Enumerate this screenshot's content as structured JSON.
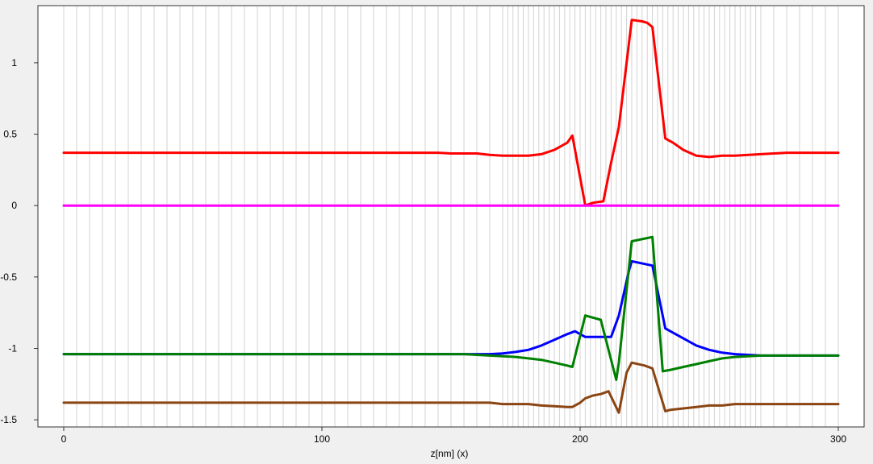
{
  "chart_data": {
    "type": "line",
    "xlabel": "z[nm] (x)",
    "ylabel": "",
    "xlim": [
      -10,
      310
    ],
    "ylim": [
      -1.55,
      1.4
    ],
    "x_ticks": [
      0,
      100,
      200,
      300
    ],
    "y_ticks": [
      -1.5,
      -1,
      -0.5,
      0,
      0.5,
      1
    ],
    "x_tick_labels": [
      "0",
      "100",
      "200",
      "300"
    ],
    "y_tick_labels": [
      "-1.5",
      "-1",
      "-0.5",
      "0",
      "0.5",
      "1"
    ],
    "grid": "vertical",
    "grid_x": [
      0,
      5,
      10,
      15,
      20,
      25,
      30,
      35,
      40,
      45,
      50,
      55,
      60,
      65,
      70,
      75,
      80,
      85,
      90,
      95,
      100,
      105,
      110,
      115,
      120,
      125,
      130,
      135,
      140,
      145,
      150,
      155,
      160,
      165,
      170,
      172,
      174,
      176,
      178,
      180,
      182,
      184,
      186,
      188,
      190,
      192,
      194,
      196,
      198,
      200,
      202,
      204,
      206,
      208,
      210,
      212,
      214,
      216,
      218,
      220,
      222,
      224,
      226,
      228,
      230,
      232,
      234,
      236,
      238,
      240,
      242,
      244,
      246,
      248,
      250,
      252,
      254,
      256,
      258,
      260,
      262,
      264,
      266,
      268,
      270,
      275,
      280,
      285,
      290,
      295,
      300
    ],
    "series": [
      {
        "color": "#ff0000",
        "x": [
          0,
          145,
          150,
          160,
          165,
          170,
          175,
          180,
          185,
          190,
          195,
          197,
          202,
          205,
          209,
          212,
          215,
          219,
          220,
          224,
          226,
          228,
          233,
          236,
          240,
          245,
          250,
          255,
          260,
          270,
          280,
          290,
          300
        ],
        "y": [
          0.37,
          0.37,
          0.365,
          0.365,
          0.355,
          0.35,
          0.35,
          0.35,
          0.36,
          0.39,
          0.44,
          0.49,
          0.0,
          0.02,
          0.03,
          0.3,
          0.55,
          1.15,
          1.3,
          1.29,
          1.28,
          1.25,
          0.47,
          0.44,
          0.39,
          0.35,
          0.34,
          0.35,
          0.35,
          0.36,
          0.37,
          0.37,
          0.37
        ]
      },
      {
        "color": "#ff00ff",
        "x": [
          0,
          300
        ],
        "y": [
          0.0,
          0.0
        ]
      },
      {
        "color": "#0000ff",
        "x": [
          0,
          155,
          165,
          170,
          175,
          180,
          185,
          190,
          195,
          198,
          202,
          207,
          212,
          215,
          219,
          220,
          228,
          233,
          237,
          240,
          245,
          250,
          255,
          260,
          265,
          270,
          280,
          300
        ],
        "y": [
          -1.04,
          -1.04,
          -1.04,
          -1.035,
          -1.025,
          -1.01,
          -0.98,
          -0.94,
          -0.9,
          -0.88,
          -0.92,
          -0.92,
          -0.92,
          -0.77,
          -0.45,
          -0.39,
          -0.42,
          -0.86,
          -0.9,
          -0.93,
          -0.98,
          -1.01,
          -1.03,
          -1.04,
          -1.045,
          -1.05,
          -1.05,
          -1.05
        ]
      },
      {
        "color": "#008000",
        "x": [
          0,
          155,
          160,
          165,
          170,
          175,
          180,
          185,
          190,
          195,
          197,
          202,
          208,
          211,
          214,
          215,
          219,
          220,
          228,
          232,
          235,
          240,
          245,
          250,
          255,
          260,
          270,
          280,
          300
        ],
        "y": [
          -1.04,
          -1.04,
          -1.045,
          -1.05,
          -1.055,
          -1.06,
          -1.07,
          -1.08,
          -1.1,
          -1.12,
          -1.13,
          -0.77,
          -0.8,
          -1.01,
          -1.22,
          -1.1,
          -0.42,
          -0.25,
          -0.22,
          -1.16,
          -1.15,
          -1.13,
          -1.11,
          -1.09,
          -1.07,
          -1.06,
          -1.05,
          -1.05,
          -1.05
        ]
      },
      {
        "color": "#8b4513",
        "x": [
          0,
          165,
          170,
          180,
          185,
          190,
          195,
          197,
          200,
          202,
          205,
          208,
          211,
          215,
          218,
          220,
          225,
          228,
          233,
          235,
          240,
          245,
          250,
          255,
          260,
          270,
          280,
          300
        ],
        "y": [
          -1.38,
          -1.38,
          -1.39,
          -1.39,
          -1.4,
          -1.405,
          -1.41,
          -1.41,
          -1.38,
          -1.35,
          -1.33,
          -1.32,
          -1.3,
          -1.45,
          -1.17,
          -1.1,
          -1.12,
          -1.14,
          -1.44,
          -1.43,
          -1.42,
          -1.41,
          -1.4,
          -1.4,
          -1.39,
          -1.39,
          -1.39,
          -1.39
        ]
      }
    ]
  }
}
